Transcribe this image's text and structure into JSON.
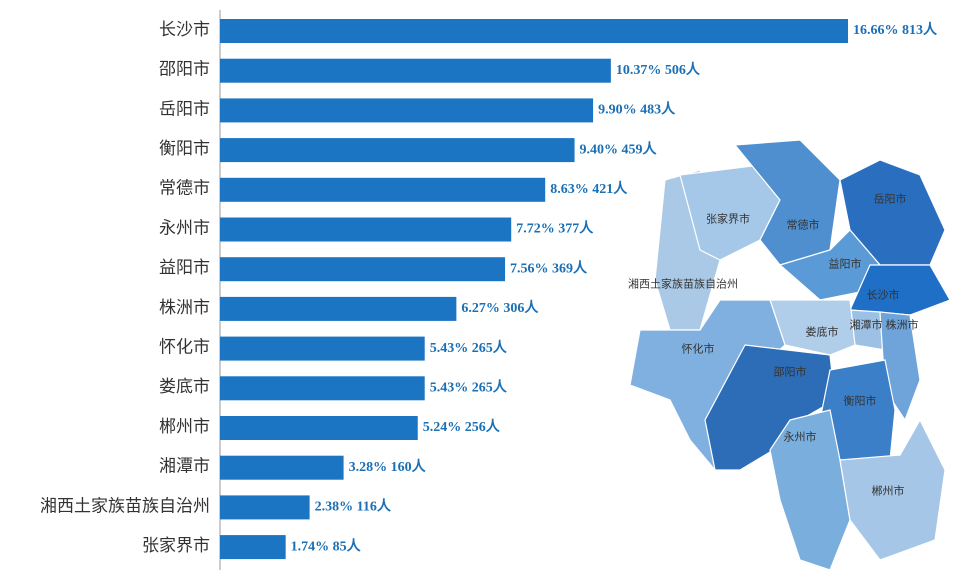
{
  "chart_data": {
    "type": "bar",
    "orientation": "horizontal",
    "color": "#1b75c2",
    "categories": [
      "长沙市",
      "邵阳市",
      "岳阳市",
      "衡阳市",
      "常德市",
      "永州市",
      "益阳市",
      "株洲市",
      "怀化市",
      "娄底市",
      "郴州市",
      "湘潭市",
      "湘西土家族苗族自治州",
      "张家界市"
    ],
    "values": [
      813,
      506,
      483,
      459,
      421,
      377,
      369,
      306,
      265,
      265,
      256,
      160,
      116,
      85
    ],
    "value_labels": [
      "16.66% 813人",
      "10.37% 506人",
      "9.90% 483人",
      "9.40% 459人",
      "8.63% 421人",
      "7.72% 377人",
      "7.56% 369人",
      "6.27% 306人",
      "5.43% 265人",
      "5.43% 265人",
      "5.24% 256人",
      "3.28% 160人",
      "2.38% 116人",
      "1.74% 85人"
    ]
  },
  "map": {
    "labels": [
      "张家界市",
      "常德市",
      "岳阳市",
      "益阳市",
      "湘西土家族苗族自治州",
      "长沙市",
      "湘潭市",
      "株洲市",
      "娄底市",
      "怀化市",
      "邵阳市",
      "衡阳市",
      "永州市",
      "郴州市"
    ]
  }
}
